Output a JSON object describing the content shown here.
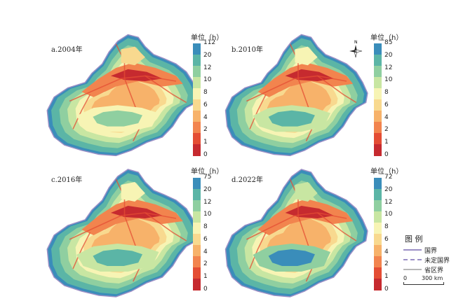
{
  "panels": [
    {
      "label": "a.2004年",
      "unit_label": "单位（h）",
      "ticks": [
        "112",
        "20",
        "12",
        "10",
        "8",
        "6",
        "4",
        "2",
        "1",
        "0"
      ],
      "basin_class": 3
    },
    {
      "label": "b.2010年",
      "unit_label": "单位（h）",
      "ticks": [
        "85",
        "20",
        "12",
        "10",
        "8",
        "6",
        "4",
        "2",
        "1",
        "0"
      ],
      "basin_class": 4
    },
    {
      "label": "c.2016年",
      "unit_label": "单位（h）",
      "ticks": [
        "75",
        "20",
        "12",
        "10",
        "8",
        "6",
        "4",
        "2",
        "1",
        "0"
      ],
      "basin_class": 4
    },
    {
      "label": "d.2022年",
      "unit_label": "单位（h）",
      "ticks": [
        "72",
        "20",
        "12",
        "10",
        "8",
        "6",
        "4",
        "2",
        "1",
        "0"
      ],
      "basin_class": 5
    }
  ],
  "color_classes": [
    "#c62a2f",
    "#e44d34",
    "#f2844e",
    "#f7b26a",
    "#f8d98f",
    "#f7f4b4",
    "#c8e6a2",
    "#8fcfa0",
    "#5bb5a6",
    "#3a8dba"
  ],
  "north_arrow": {
    "letter": "N",
    "icon": "north-arrow-icon"
  },
  "legend": {
    "title": "图 例",
    "items": [
      {
        "label": "国界",
        "color": "#9b8fc6",
        "style": "solid"
      },
      {
        "label": "未定国界",
        "color": "#9b8fc6",
        "style": "dashed"
      },
      {
        "label": "省区界",
        "color": "#b8b8b8",
        "style": "solid"
      }
    ],
    "scale_zero": "0",
    "scale_label": "300 km"
  }
}
